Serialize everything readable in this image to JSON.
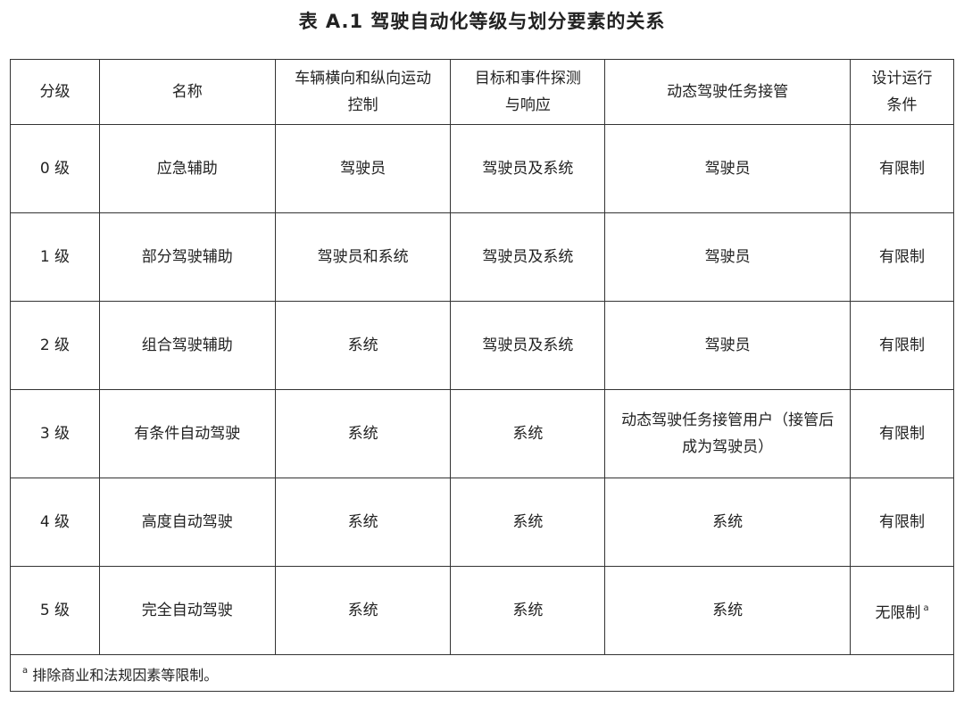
{
  "title": "表 A.1  驾驶自动化等级与划分要素的关系",
  "headers": [
    "分级",
    "名称",
    "车辆横向和纵向运动控制",
    "目标和事件探测与响应",
    "动态驾驶任务接管",
    "设计运行条件"
  ],
  "rows": [
    [
      "0 级",
      "应急辅助",
      "驾驶员",
      "驾驶员及系统",
      "驾驶员",
      "有限制"
    ],
    [
      "1 级",
      "部分驾驶辅助",
      "驾驶员和系统",
      "驾驶员及系统",
      "驾驶员",
      "有限制"
    ],
    [
      "2 级",
      "组合驾驶辅助",
      "系统",
      "驾驶员及系统",
      "驾驶员",
      "有限制"
    ],
    [
      "3 级",
      "有条件自动驾驶",
      "系统",
      "系统",
      "动态驾驶任务接管用户（接管后成为驾驶员）",
      "有限制"
    ],
    [
      "4 级",
      "高度自动驾驶",
      "系统",
      "系统",
      "系统",
      "有限制"
    ],
    [
      "5 级",
      "完全自动驾驶",
      "系统",
      "系统",
      "系统",
      "无限制"
    ]
  ],
  "footnote_marker": "a",
  "footnote": "排除商业和法规因素等限制。"
}
